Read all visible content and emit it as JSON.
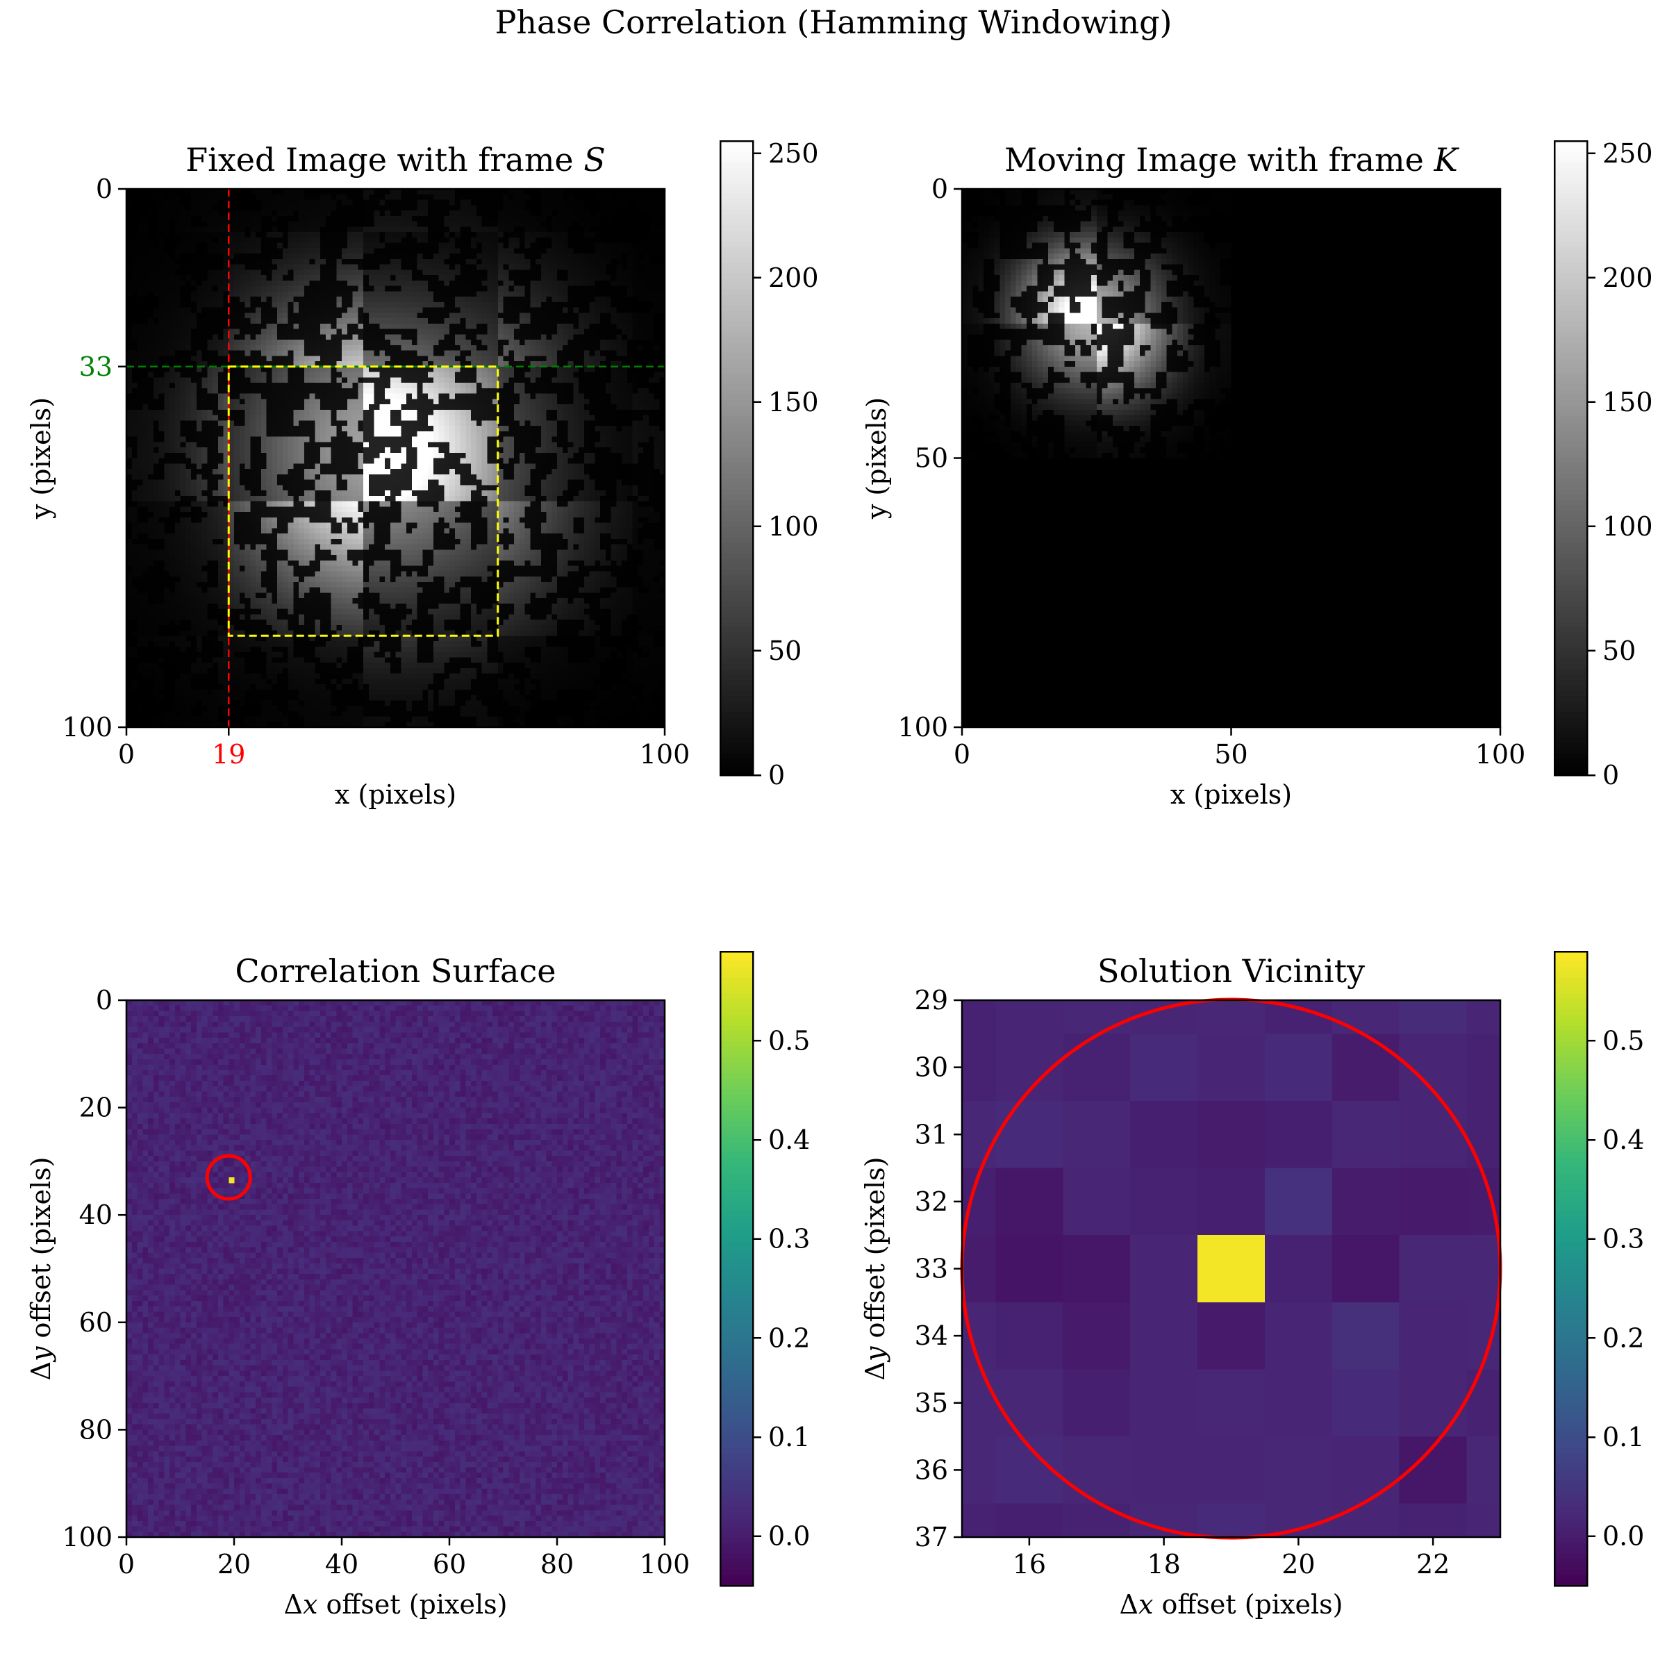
{
  "figure": {
    "suptitle": "Phase Correlation (Hamming Windowing)"
  },
  "chart_data": [
    {
      "type": "heatmap",
      "id": "fixed",
      "title_text": "Fixed Image with frame ",
      "title_symbol": "S",
      "xlabel": "x (pixels)",
      "ylabel": "y (pixels)",
      "xlim": [
        0,
        100
      ],
      "ylim": [
        100,
        0
      ],
      "xticks": [
        0,
        19,
        100
      ],
      "yticks": [
        0,
        33,
        100
      ],
      "xtick_labels": [
        "0",
        "19",
        "100"
      ],
      "ytick_labels": [
        "0",
        "33",
        "100"
      ],
      "highlight_x": {
        "value": 19,
        "color": "#ff0000"
      },
      "highlight_y": {
        "value": 33,
        "color": "#008000"
      },
      "overlay_rect": {
        "x0": 19,
        "x1": 69,
        "y0": 33,
        "y1": 83,
        "color": "#ffff00"
      },
      "colormap": "gray",
      "colorbar": {
        "min": 0,
        "max": 255,
        "ticks": [
          "0",
          "50",
          "100",
          "150",
          "200",
          "250"
        ]
      }
    },
    {
      "type": "heatmap",
      "id": "moving",
      "title_text": "Moving Image with frame ",
      "title_symbol": "K",
      "xlabel": "x (pixels)",
      "ylabel": "y (pixels)",
      "xlim": [
        0,
        100
      ],
      "ylim": [
        100,
        0
      ],
      "xticks": [
        0,
        50,
        100
      ],
      "yticks": [
        0,
        50,
        100
      ],
      "xtick_labels": [
        "0",
        "50",
        "100"
      ],
      "ytick_labels": [
        "0",
        "50",
        "100"
      ],
      "content_extent": {
        "x": [
          0,
          50
        ],
        "y": [
          0,
          50
        ]
      },
      "colormap": "gray",
      "colorbar": {
        "min": 0,
        "max": 255,
        "ticks": [
          "0",
          "50",
          "100",
          "150",
          "200",
          "250"
        ]
      }
    },
    {
      "type": "heatmap",
      "id": "correlation",
      "title_text": "Correlation Surface",
      "xlabel_delta": "Δ",
      "xlabel_var": "x",
      "xlabel_rest": " offset (pixels)",
      "ylabel_delta": "Δ",
      "ylabel_var": "y",
      "ylabel_rest": " offset (pixels)",
      "xlim": [
        0,
        100
      ],
      "ylim": [
        100,
        0
      ],
      "xticks": [
        0,
        20,
        40,
        60,
        80,
        100
      ],
      "yticks": [
        0,
        20,
        40,
        60,
        80,
        100
      ],
      "xtick_labels": [
        "0",
        "20",
        "40",
        "60",
        "80",
        "100"
      ],
      "ytick_labels": [
        "0",
        "20",
        "40",
        "60",
        "80",
        "100"
      ],
      "peak": {
        "x": 19,
        "y": 33,
        "value": 0.58
      },
      "background_value": 0.0,
      "marker_circle": {
        "x": 19,
        "y": 33,
        "radius": 4,
        "color": "#ff0000"
      },
      "colormap": "viridis",
      "colorbar": {
        "min": -0.05,
        "max": 0.59,
        "ticks": [
          "0.0",
          "0.1",
          "0.2",
          "0.3",
          "0.4",
          "0.5"
        ]
      }
    },
    {
      "type": "heatmap",
      "id": "vicinity",
      "title_text": "Solution Vicinity",
      "xlabel_delta": "Δ",
      "xlabel_var": "x",
      "xlabel_rest": " offset (pixels)",
      "ylabel_delta": "Δ",
      "ylabel_var": "y",
      "ylabel_rest": " offset (pixels)",
      "xlim": [
        15,
        23
      ],
      "ylim": [
        37,
        29
      ],
      "xticks": [
        16,
        18,
        20,
        22
      ],
      "yticks": [
        29,
        30,
        31,
        32,
        33,
        34,
        35,
        36,
        37
      ],
      "xtick_labels": [
        "16",
        "18",
        "20",
        "22"
      ],
      "ytick_labels": [
        "29",
        "30",
        "31",
        "32",
        "33",
        "34",
        "35",
        "36",
        "37"
      ],
      "cells_x": [
        15,
        16,
        17,
        18,
        19,
        20,
        21,
        22,
        23
      ],
      "cells_y": [
        29,
        30,
        31,
        32,
        33,
        34,
        35,
        36,
        37
      ],
      "values": [
        [
          0.01,
          0.015,
          0.02,
          0.015,
          0.02,
          0.01,
          0.02,
          0.03,
          0.015
        ],
        [
          0.01,
          0.015,
          0.01,
          0.025,
          0.015,
          0.025,
          0.0,
          0.015,
          0.01
        ],
        [
          0.02,
          0.025,
          0.02,
          0.005,
          0.0,
          0.005,
          0.02,
          0.015,
          0.01
        ],
        [
          0.005,
          -0.01,
          0.015,
          0.01,
          0.005,
          0.04,
          0.0,
          -0.005,
          0.0
        ],
        [
          0.0,
          -0.015,
          -0.01,
          0.015,
          0.58,
          0.01,
          -0.01,
          0.02,
          0.02
        ],
        [
          0.015,
          0.01,
          -0.005,
          0.015,
          -0.005,
          0.015,
          0.035,
          0.015,
          0.02
        ],
        [
          0.02,
          0.02,
          0.005,
          0.015,
          0.02,
          0.015,
          0.025,
          0.015,
          0.01
        ],
        [
          0.02,
          0.025,
          0.02,
          0.015,
          0.015,
          0.02,
          0.015,
          -0.01,
          0.02
        ],
        [
          0.01,
          0.005,
          0.01,
          0.02,
          0.025,
          0.02,
          0.015,
          0.01,
          0.015
        ]
      ],
      "marker_circle": {
        "x": 19,
        "y": 33,
        "radius": 4,
        "color": "#ff0000"
      },
      "colormap": "viridis",
      "colorbar": {
        "min": -0.05,
        "max": 0.59,
        "ticks": [
          "0.0",
          "0.1",
          "0.2",
          "0.3",
          "0.4",
          "0.5"
        ]
      }
    }
  ]
}
